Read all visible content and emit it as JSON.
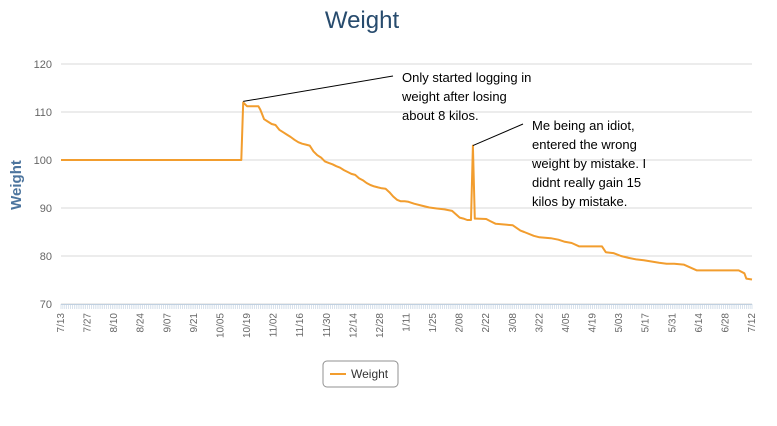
{
  "chart_data": {
    "type": "line",
    "title": "Weight",
    "xlabel": "",
    "ylabel": "Weight",
    "ylim": [
      70,
      120
    ],
    "yticks": [
      70,
      80,
      90,
      100,
      110,
      120
    ],
    "grid": true,
    "legend_position": "bottom-center",
    "x_tick_labels": [
      "7/13",
      "7/27",
      "8/10",
      "8/24",
      "9/07",
      "9/21",
      "10/05",
      "10/19",
      "11/02",
      "11/16",
      "11/30",
      "12/14",
      "12/28",
      "1/11",
      "1/25",
      "2/08",
      "2/22",
      "3/08",
      "3/22",
      "4/05",
      "4/19",
      "5/03",
      "5/17",
      "5/31",
      "6/14",
      "6/28",
      "7/12"
    ],
    "series": [
      {
        "name": "Weight",
        "color": "#f29d2e",
        "x": [
          "7/13",
          "10/16",
          "10/17",
          "10/19",
          "10/25",
          "10/26",
          "10/27",
          "10/28",
          "10/30",
          "11/01",
          "11/03",
          "11/05",
          "11/07",
          "11/09",
          "11/11",
          "11/13",
          "11/15",
          "11/17",
          "11/19",
          "11/21",
          "11/23",
          "11/25",
          "11/27",
          "11/29",
          "12/01",
          "12/03",
          "12/05",
          "12/07",
          "12/09",
          "12/11",
          "12/13",
          "12/15",
          "12/17",
          "12/19",
          "12/21",
          "12/23",
          "12/25",
          "12/27",
          "12/29",
          "12/31",
          "1/02",
          "1/04",
          "1/06",
          "1/08",
          "1/10",
          "1/12",
          "1/15",
          "1/19",
          "1/23",
          "1/27",
          "1/31",
          "2/04",
          "2/08",
          "2/10",
          "2/12",
          "2/14",
          "2/15",
          "2/16",
          "2/17",
          "2/22",
          "2/24",
          "2/27",
          "3/05",
          "3/08",
          "3/12",
          "3/14",
          "3/19",
          "3/22",
          "3/28",
          "4/01",
          "4/04",
          "4/08",
          "4/12",
          "4/24",
          "4/26",
          "4/30",
          "5/04",
          "5/08",
          "5/12",
          "5/16",
          "5/24",
          "5/28",
          "6/01",
          "6/06",
          "6/13",
          "6/17",
          "7/05",
          "7/08",
          "7/09",
          "7/12"
        ],
        "values": [
          100,
          100,
          112,
          111.2,
          111.2,
          110.5,
          109.5,
          108.5,
          108,
          107.5,
          107.3,
          106.3,
          105.8,
          105.3,
          104.8,
          104.2,
          103.7,
          103.4,
          103.2,
          103,
          101.8,
          101,
          100.5,
          99.7,
          99.4,
          99.1,
          98.7,
          98.4,
          97.9,
          97.5,
          97.1,
          96.9,
          96.2,
          95.8,
          95.2,
          94.8,
          94.5,
          94.3,
          94.1,
          94,
          93.3,
          92.4,
          91.7,
          91.4,
          91.4,
          91.3,
          90.9,
          90.5,
          90.1,
          89.9,
          89.7,
          89.4,
          88,
          87.8,
          87.5,
          87.5,
          103,
          87.8,
          87.8,
          87.7,
          87.3,
          86.7,
          86.5,
          86.4,
          85.3,
          85,
          84.2,
          83.9,
          83.7,
          83.4,
          83,
          82.7,
          82,
          82,
          80.8,
          80.6,
          80,
          79.6,
          79.3,
          79.1,
          78.6,
          78.4,
          78.4,
          78.2,
          77,
          77,
          77,
          76.4,
          75.3,
          75.1
        ]
      }
    ],
    "annotations": [
      {
        "lines": [
          "Only started logging in",
          "weight after losing",
          "about 8 kilos."
        ],
        "x": "10/17",
        "y": 112
      },
      {
        "lines": [
          "Me being an idiot,",
          "entered the wrong",
          "weight by mistake. I",
          "didnt really gain 15",
          "kilos by mistake."
        ],
        "x": "2/15",
        "y": 103
      }
    ]
  }
}
